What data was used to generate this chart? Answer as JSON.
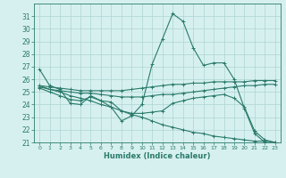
{
  "xlabel": "Humidex (Indice chaleur)",
  "bg_color": "#d6f0f0",
  "grid_color": "#aed4d4",
  "line_color": "#2a7a6a",
  "xlim": [
    -0.5,
    23.5
  ],
  "ylim": [
    21,
    32
  ],
  "yticks": [
    21,
    22,
    23,
    24,
    25,
    26,
    27,
    28,
    29,
    30,
    31
  ],
  "xticks": [
    0,
    1,
    2,
    3,
    4,
    5,
    6,
    7,
    8,
    9,
    10,
    11,
    12,
    13,
    14,
    15,
    16,
    17,
    18,
    19,
    20,
    21,
    22,
    23
  ],
  "lines": [
    {
      "x": [
        0,
        1,
        2,
        3,
        4,
        5,
        6,
        7,
        8,
        9,
        10,
        11,
        12,
        13,
        14,
        15,
        16,
        17,
        18,
        19,
        20,
        21,
        22,
        23
      ],
      "y": [
        26.8,
        25.5,
        25.2,
        24.1,
        24.0,
        24.7,
        24.3,
        23.8,
        22.7,
        23.1,
        24.0,
        27.2,
        29.2,
        31.2,
        30.6,
        28.5,
        27.1,
        27.3,
        27.3,
        26.0,
        23.7,
        21.7,
        21.0,
        20.9
      ]
    },
    {
      "x": [
        0,
        1,
        2,
        3,
        4,
        5,
        6,
        7,
        8,
        9,
        10,
        11,
        12,
        13,
        14,
        15,
        16,
        17,
        18,
        19,
        20,
        21,
        22,
        23
      ],
      "y": [
        25.5,
        25.4,
        25.3,
        25.2,
        25.1,
        25.1,
        25.1,
        25.1,
        25.1,
        25.2,
        25.3,
        25.4,
        25.5,
        25.6,
        25.6,
        25.7,
        25.7,
        25.8,
        25.8,
        25.8,
        25.8,
        25.9,
        25.9,
        25.9
      ]
    },
    {
      "x": [
        0,
        1,
        2,
        3,
        4,
        5,
        6,
        7,
        8,
        9,
        10,
        11,
        12,
        13,
        14,
        15,
        16,
        17,
        18,
        19,
        20,
        21,
        22,
        23
      ],
      "y": [
        25.4,
        25.2,
        25.1,
        25.0,
        24.9,
        24.9,
        24.8,
        24.7,
        24.6,
        24.6,
        24.6,
        24.7,
        24.8,
        24.8,
        24.9,
        25.0,
        25.1,
        25.2,
        25.3,
        25.4,
        25.5,
        25.5,
        25.6,
        25.6
      ]
    },
    {
      "x": [
        0,
        1,
        2,
        3,
        4,
        5,
        6,
        7,
        8,
        9,
        10,
        11,
        12,
        13,
        14,
        15,
        16,
        17,
        18,
        19,
        20,
        21,
        22,
        23
      ],
      "y": [
        25.3,
        25.0,
        24.7,
        24.4,
        24.3,
        24.6,
        24.3,
        24.2,
        23.5,
        23.3,
        23.3,
        23.4,
        23.5,
        24.1,
        24.3,
        24.5,
        24.6,
        24.7,
        24.8,
        24.5,
        23.8,
        21.9,
        21.2,
        21.0
      ]
    },
    {
      "x": [
        0,
        1,
        2,
        3,
        4,
        5,
        6,
        7,
        8,
        9,
        10,
        11,
        12,
        13,
        14,
        15,
        16,
        17,
        18,
        19,
        20,
        21,
        22,
        23
      ],
      "y": [
        25.5,
        25.2,
        25.0,
        24.7,
        24.5,
        24.3,
        24.0,
        23.8,
        23.5,
        23.2,
        23.0,
        22.7,
        22.4,
        22.2,
        22.0,
        21.8,
        21.7,
        21.5,
        21.4,
        21.3,
        21.2,
        21.1,
        21.1,
        21.0
      ]
    }
  ]
}
